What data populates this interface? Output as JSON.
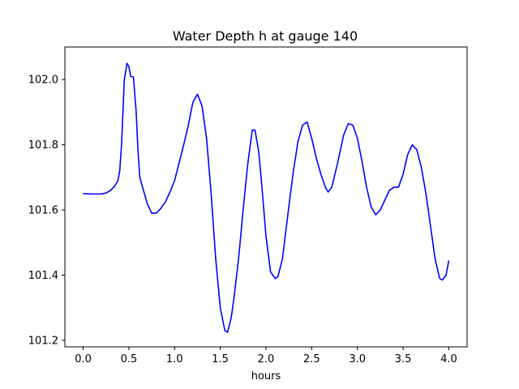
{
  "chart_data": {
    "type": "line",
    "title": "Water Depth h at gauge 140",
    "xlabel": "hours",
    "ylabel": "",
    "xlim": [
      -0.2,
      4.2
    ],
    "ylim": [
      101.18,
      102.1
    ],
    "grid": false,
    "xticks": [
      0.0,
      0.5,
      1.0,
      1.5,
      2.0,
      2.5,
      3.0,
      3.5,
      4.0
    ],
    "xtick_labels": [
      "0.0",
      "0.5",
      "1.0",
      "1.5",
      "2.0",
      "2.5",
      "3.0",
      "3.5",
      "4.0"
    ],
    "yticks": [
      101.2,
      101.4,
      101.6,
      101.8,
      102.0
    ],
    "ytick_labels": [
      "101.2",
      "101.4",
      "101.6",
      "101.8",
      "102.0"
    ],
    "series": [
      {
        "color": "#0000ff",
        "x": [
          0.0,
          0.1,
          0.2,
          0.25,
          0.3,
          0.35,
          0.38,
          0.4,
          0.42,
          0.45,
          0.48,
          0.5,
          0.52,
          0.55,
          0.58,
          0.6,
          0.62,
          0.65,
          0.68,
          0.7,
          0.75,
          0.8,
          0.85,
          0.9,
          0.95,
          1.0,
          1.1,
          1.15,
          1.2,
          1.25,
          1.3,
          1.35,
          1.4,
          1.45,
          1.5,
          1.55,
          1.58,
          1.62,
          1.65,
          1.7,
          1.75,
          1.8,
          1.85,
          1.88,
          1.92,
          1.95,
          2.0,
          2.05,
          2.1,
          2.13,
          2.18,
          2.25,
          2.3,
          2.35,
          2.4,
          2.45,
          2.5,
          2.55,
          2.6,
          2.65,
          2.68,
          2.72,
          2.78,
          2.85,
          2.9,
          2.95,
          3.0,
          3.05,
          3.1,
          3.15,
          3.2,
          3.25,
          3.3,
          3.35,
          3.4,
          3.45,
          3.5,
          3.55,
          3.6,
          3.65,
          3.7,
          3.75,
          3.8,
          3.85,
          3.9,
          3.93,
          3.97,
          4.0
        ],
        "y": [
          101.65,
          101.649,
          101.649,
          101.652,
          101.66,
          101.675,
          101.69,
          101.72,
          101.8,
          102.0,
          102.05,
          102.04,
          102.01,
          102.008,
          101.9,
          101.78,
          101.7,
          101.67,
          101.64,
          101.62,
          101.59,
          101.59,
          101.605,
          101.625,
          101.655,
          101.69,
          101.8,
          101.86,
          101.93,
          101.955,
          101.92,
          101.82,
          101.65,
          101.45,
          101.3,
          101.23,
          101.225,
          101.27,
          101.33,
          101.45,
          101.6,
          101.74,
          101.845,
          101.845,
          101.78,
          101.69,
          101.52,
          101.41,
          101.39,
          101.395,
          101.45,
          101.61,
          101.72,
          101.81,
          101.86,
          101.87,
          101.82,
          101.76,
          101.71,
          101.67,
          101.655,
          101.67,
          101.74,
          101.83,
          101.865,
          101.86,
          101.82,
          101.75,
          101.67,
          101.61,
          101.585,
          101.6,
          101.63,
          101.66,
          101.67,
          101.67,
          101.71,
          101.77,
          101.8,
          101.785,
          101.73,
          101.65,
          101.55,
          101.45,
          101.39,
          101.385,
          101.4,
          101.445
        ]
      }
    ]
  }
}
